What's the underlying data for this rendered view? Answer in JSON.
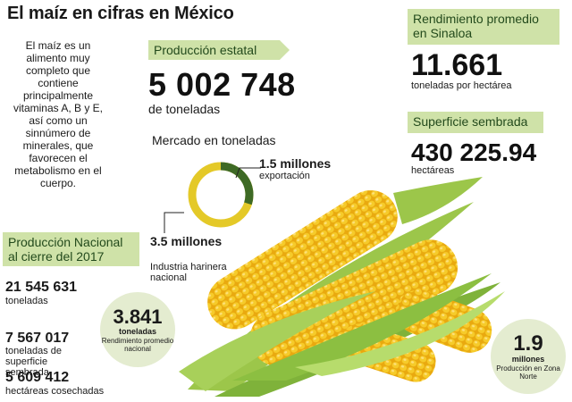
{
  "title": "El maíz en cifras en México",
  "intro": "El maíz es un alimento muy completo que contiene principalmente vitaminas A, B y E, así como un sinnúmero de minerales, que favorecen el metabolismo en el cuerpo.",
  "produccion_estatal": {
    "label": "Producción estatal",
    "value": "5 002 748",
    "unit": "de toneladas"
  },
  "rendimiento_sinaloa": {
    "label": "Rendimiento promedio en Sinaloa",
    "value": "11.661",
    "unit": "toneladas por hectárea"
  },
  "superficie_sembrada": {
    "label": "Superficie sembrada",
    "value": "430 225.94",
    "unit": "hectáreas"
  },
  "mercado": {
    "title": "Mercado en toneladas",
    "exportacion_value": "1.5 millones",
    "exportacion_label": "exportación",
    "industria_value": "3.5 millones",
    "industria_label": "Industria harinera nacional",
    "exportacion_millones": 1.5,
    "industria_millones": 3.5,
    "color_exportacion": "#3e6a25",
    "color_industria": "#e4c928"
  },
  "produccion_nacional": {
    "label": "Producción Nacional al cierre del 2017",
    "items": [
      {
        "value": "21 545 631",
        "label": "toneladas"
      },
      {
        "value": "7 567 017",
        "label": "toneladas de superficie sembrada"
      },
      {
        "value": "5 609 412",
        "label": "hectáreas cosechadas"
      }
    ]
  },
  "rendimiento_nacional": {
    "value": "3.841",
    "sub": "toneladas",
    "label": "Rendimiento promedio nacional"
  },
  "zona_norte": {
    "value": "1.9",
    "sub": "millones",
    "label": "Producción en Zona Norte"
  },
  "colors": {
    "banner_bg": "#cfe2a8",
    "circle_bg": "#e4ecd0",
    "corn_kernel": "#f2c21a",
    "husk": "#7fb23a"
  }
}
